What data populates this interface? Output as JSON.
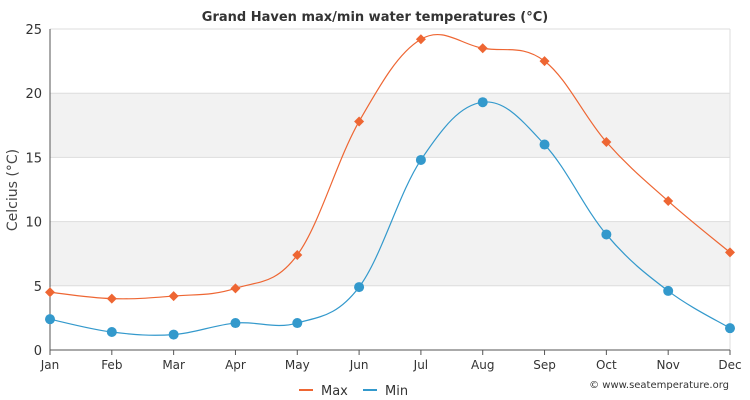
{
  "chart_data": {
    "type": "line",
    "title": "Grand Haven max/min water temperatures (°C)",
    "xlabel": "",
    "ylabel": "Celcius (°C)",
    "categories": [
      "Jan",
      "Feb",
      "Mar",
      "Apr",
      "May",
      "Jun",
      "Jul",
      "Aug",
      "Sep",
      "Oct",
      "Nov",
      "Dec"
    ],
    "ylim": [
      0,
      25
    ],
    "yticks": [
      0,
      5,
      10,
      15,
      20,
      25
    ],
    "series": [
      {
        "name": "Max",
        "color": "#ee6633",
        "marker": "diamond",
        "values": [
          4.5,
          4.0,
          4.2,
          4.8,
          7.4,
          17.8,
          24.2,
          23.5,
          22.5,
          16.2,
          11.6,
          7.6
        ]
      },
      {
        "name": "Min",
        "color": "#3399cc",
        "marker": "circle",
        "values": [
          2.4,
          1.4,
          1.2,
          2.1,
          2.1,
          4.9,
          14.8,
          19.3,
          16.0,
          9.0,
          4.6,
          1.7
        ]
      }
    ],
    "legend_position": "bottom-center",
    "grid": true
  },
  "credit": "© www.seatemperature.org"
}
